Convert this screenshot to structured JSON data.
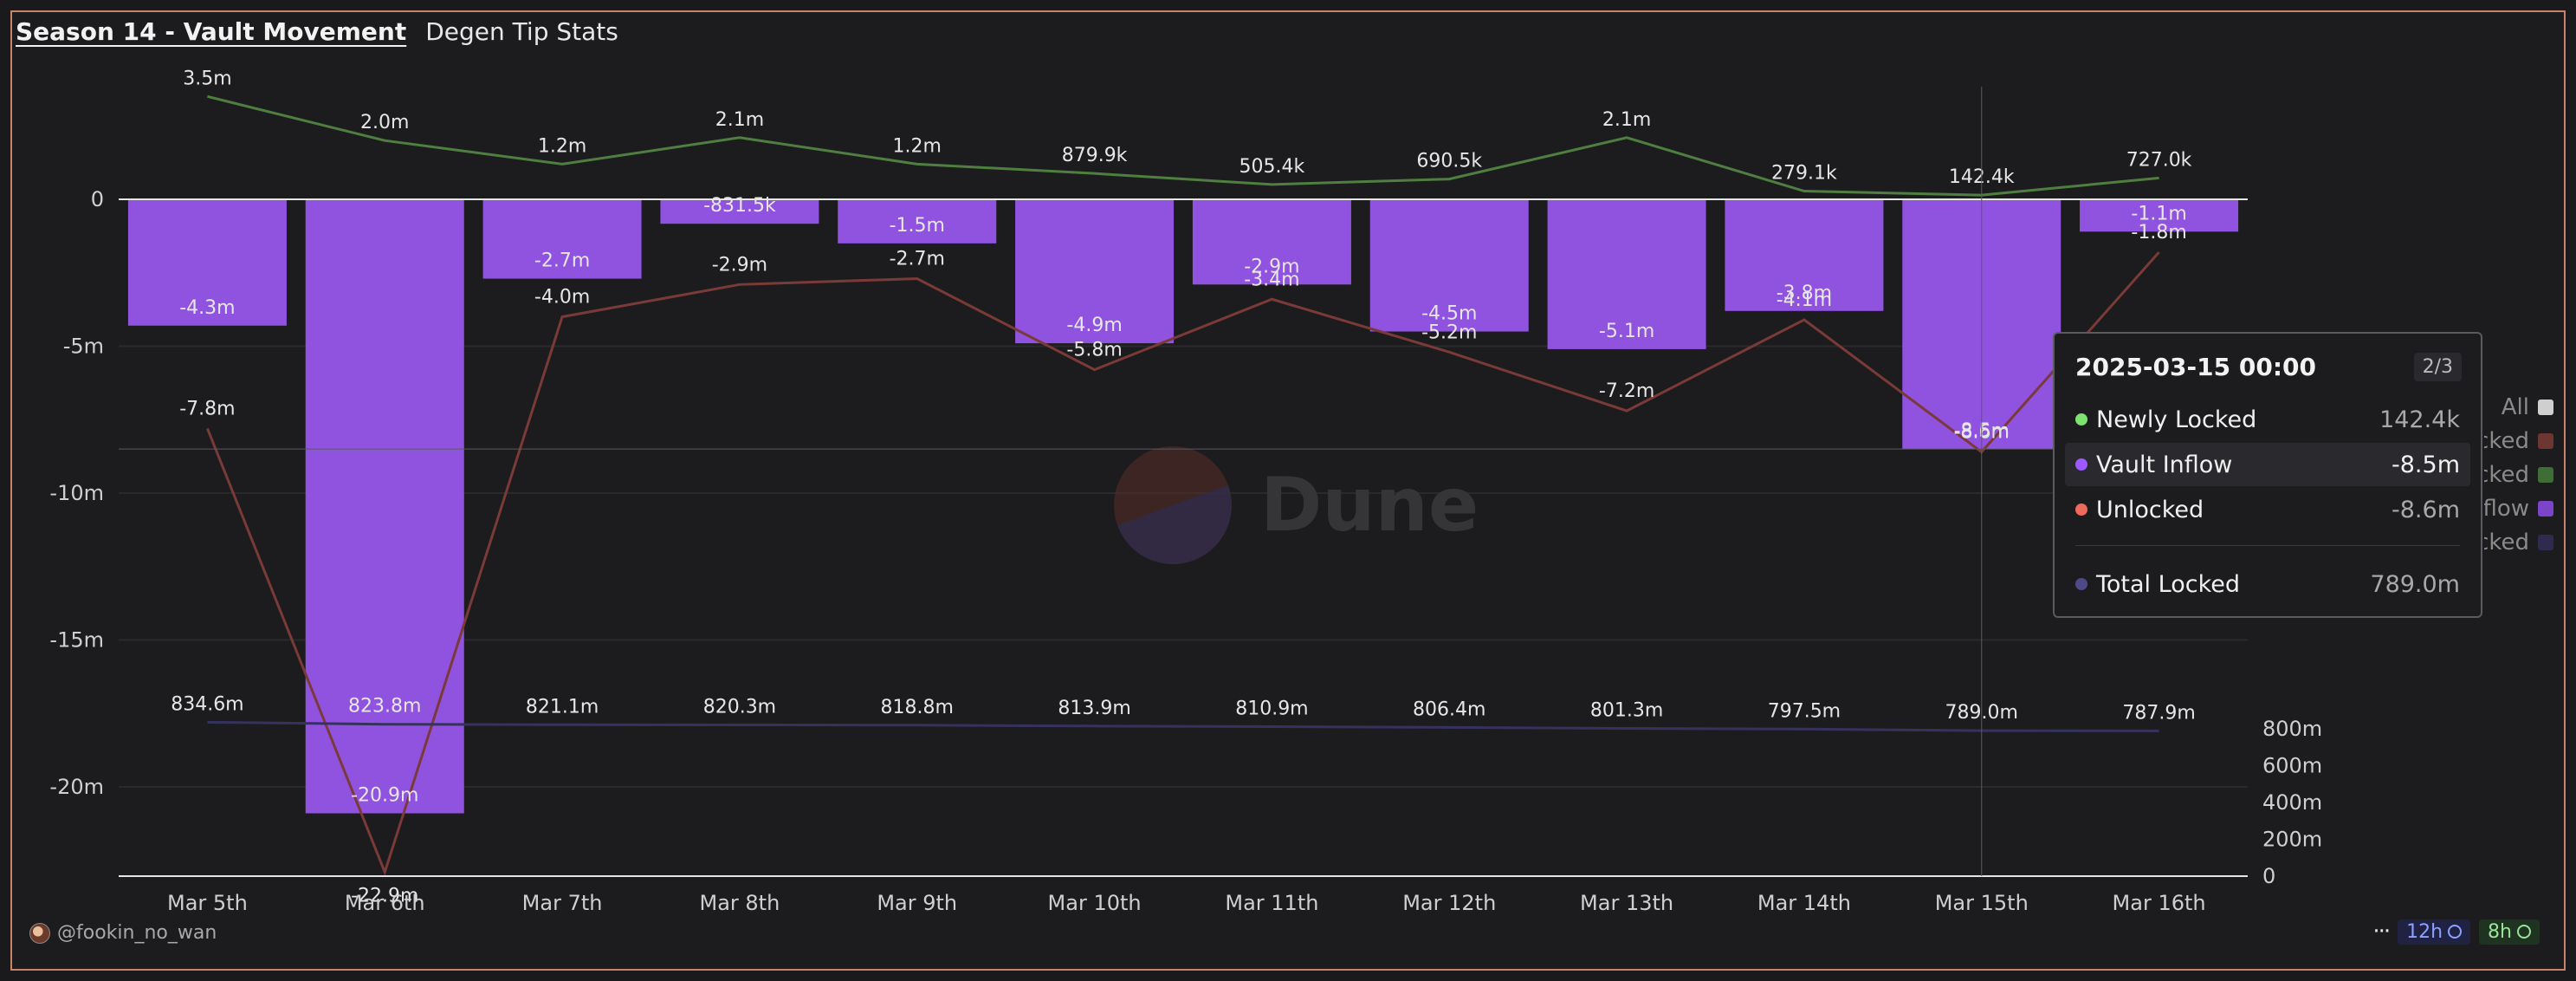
{
  "header": {
    "title": "Season 14 - Vault Movement",
    "subtitle": "Degen Tip Stats"
  },
  "watermark": "Dune",
  "footer": {
    "author": "@fookin_no_wan",
    "more_label": "···",
    "badge_12h": "12h",
    "badge_8h": "8h"
  },
  "tooltip": {
    "date": "2025-03-15 00:00",
    "page": "2/3",
    "rows": [
      {
        "label": "Newly Locked",
        "value": "142.4k",
        "color": "#7ee36e"
      },
      {
        "label": "Vault Inflow",
        "value": "-8.5m",
        "color": "#9b59ff"
      },
      {
        "label": "Unlocked",
        "value": "-8.6m",
        "color": "#f06a5c"
      },
      {
        "label": "Total Locked",
        "value": "789.0m",
        "color": "#4e4a8a"
      }
    ]
  },
  "legend": {
    "items": [
      {
        "label": "All",
        "color": "#cfcfcf"
      },
      {
        "label": "Unlocked",
        "color": "#6e3630"
      },
      {
        "label": "Newly Locked",
        "color": "#3e6e35"
      },
      {
        "label": "Vault Inflow",
        "color": "#7a45c8"
      },
      {
        "label": "Total Locked",
        "color": "#2e2b4e"
      }
    ]
  },
  "chart_data": {
    "type": "bar",
    "categories": [
      "Mar 5th",
      "Mar 6th",
      "Mar 7th",
      "Mar 8th",
      "Mar 9th",
      "Mar 10th",
      "Mar 11th",
      "Mar 12th",
      "Mar 13th",
      "Mar 14th",
      "Mar 15th",
      "Mar 16th"
    ],
    "y_left": {
      "ticks": [
        0,
        -5,
        -10,
        -15,
        -20
      ],
      "tick_labels": [
        "0",
        "-5m",
        "-10m",
        "-15m",
        "-20m"
      ],
      "range": [
        -23,
        3.5
      ]
    },
    "y_right": {
      "ticks": [
        0,
        200,
        400,
        600,
        800
      ],
      "tick_labels": [
        "0",
        "200m",
        "400m",
        "600m",
        "800m"
      ],
      "range": [
        0,
        848
      ]
    },
    "series": [
      {
        "name": "Vault Inflow",
        "type": "bar",
        "axis": "left",
        "color": "#9053e0",
        "values": [
          -4.3,
          -20.9,
          -2.7,
          -0.8315,
          -1.5,
          -4.9,
          -2.9,
          -4.5,
          -5.1,
          -3.8,
          -8.5,
          -1.1
        ],
        "labels": [
          "-4.3m",
          "-20.9m",
          "-2.7m",
          "-831.5k",
          "-1.5m",
          "-4.9m",
          "-2.9m",
          "-4.5m",
          "-5.1m",
          "-3.8m",
          "-8.5m",
          "-1.1m"
        ]
      },
      {
        "name": "Unlocked",
        "type": "line",
        "axis": "left",
        "color": "#7a3a38",
        "values": [
          -7.8,
          -22.9,
          -4.0,
          -2.9,
          -2.7,
          -5.8,
          -3.4,
          -5.2,
          -7.2,
          -4.1,
          -8.6,
          -1.8
        ],
        "labels": [
          "-7.8m",
          "-22.9m",
          "-4.0m",
          "-2.9m",
          "-2.7m",
          "-5.8m",
          "-3.4m",
          "-5.2m",
          "-7.2m",
          "-4.1m",
          "-8.6m",
          "-1.8m"
        ]
      },
      {
        "name": "Newly Locked",
        "type": "line",
        "axis": "left",
        "color": "#4f7f40",
        "values": [
          3.5,
          2.0,
          1.2,
          2.1,
          1.2,
          0.8799,
          0.5054,
          0.6905,
          2.1,
          0.2791,
          0.1424,
          0.727
        ],
        "labels": [
          "3.5m",
          "2.0m",
          "1.2m",
          "2.1m",
          "1.2m",
          "879.9k",
          "505.4k",
          "690.5k",
          "2.1m",
          "279.1k",
          "142.4k",
          "727.0k"
        ]
      },
      {
        "name": "Total Locked",
        "type": "line",
        "axis": "right",
        "color": "#36325e",
        "values": [
          834.6,
          823.8,
          821.1,
          820.3,
          818.8,
          813.9,
          810.9,
          806.4,
          801.3,
          797.5,
          789.0,
          787.9
        ],
        "labels": [
          "834.6m",
          "823.8m",
          "821.1m",
          "820.3m",
          "818.8m",
          "813.9m",
          "810.9m",
          "806.4m",
          "801.3m",
          "797.5m",
          "789.0m",
          "787.9m"
        ]
      }
    ],
    "hover_index": 10,
    "grid": true,
    "legend_position": "right"
  }
}
